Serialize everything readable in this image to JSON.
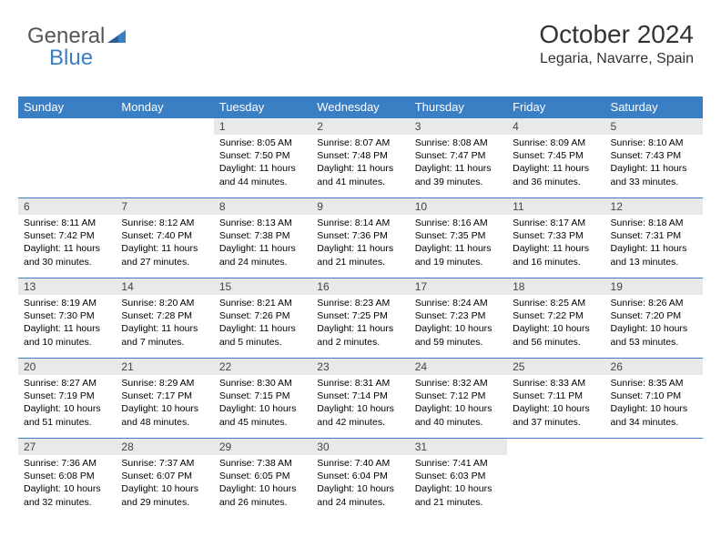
{
  "brand": {
    "part1": "General",
    "part2": "Blue"
  },
  "title": "October 2024",
  "location": "Legaria, Navarre, Spain",
  "colors": {
    "header_bg": "#3a7fc4",
    "header_text": "#ffffff",
    "daynum_bg": "#e8e9ea",
    "border": "#3a7fc4",
    "logo_gray": "#555555",
    "logo_blue": "#3a7fc4"
  },
  "weekdays": [
    "Sunday",
    "Monday",
    "Tuesday",
    "Wednesday",
    "Thursday",
    "Friday",
    "Saturday"
  ],
  "weeks": [
    [
      {
        "num": "",
        "sunrise": "",
        "sunset": "",
        "daylight": ""
      },
      {
        "num": "",
        "sunrise": "",
        "sunset": "",
        "daylight": ""
      },
      {
        "num": "1",
        "sunrise": "Sunrise: 8:05 AM",
        "sunset": "Sunset: 7:50 PM",
        "daylight": "Daylight: 11 hours and 44 minutes."
      },
      {
        "num": "2",
        "sunrise": "Sunrise: 8:07 AM",
        "sunset": "Sunset: 7:48 PM",
        "daylight": "Daylight: 11 hours and 41 minutes."
      },
      {
        "num": "3",
        "sunrise": "Sunrise: 8:08 AM",
        "sunset": "Sunset: 7:47 PM",
        "daylight": "Daylight: 11 hours and 39 minutes."
      },
      {
        "num": "4",
        "sunrise": "Sunrise: 8:09 AM",
        "sunset": "Sunset: 7:45 PM",
        "daylight": "Daylight: 11 hours and 36 minutes."
      },
      {
        "num": "5",
        "sunrise": "Sunrise: 8:10 AM",
        "sunset": "Sunset: 7:43 PM",
        "daylight": "Daylight: 11 hours and 33 minutes."
      }
    ],
    [
      {
        "num": "6",
        "sunrise": "Sunrise: 8:11 AM",
        "sunset": "Sunset: 7:42 PM",
        "daylight": "Daylight: 11 hours and 30 minutes."
      },
      {
        "num": "7",
        "sunrise": "Sunrise: 8:12 AM",
        "sunset": "Sunset: 7:40 PM",
        "daylight": "Daylight: 11 hours and 27 minutes."
      },
      {
        "num": "8",
        "sunrise": "Sunrise: 8:13 AM",
        "sunset": "Sunset: 7:38 PM",
        "daylight": "Daylight: 11 hours and 24 minutes."
      },
      {
        "num": "9",
        "sunrise": "Sunrise: 8:14 AM",
        "sunset": "Sunset: 7:36 PM",
        "daylight": "Daylight: 11 hours and 21 minutes."
      },
      {
        "num": "10",
        "sunrise": "Sunrise: 8:16 AM",
        "sunset": "Sunset: 7:35 PM",
        "daylight": "Daylight: 11 hours and 19 minutes."
      },
      {
        "num": "11",
        "sunrise": "Sunrise: 8:17 AM",
        "sunset": "Sunset: 7:33 PM",
        "daylight": "Daylight: 11 hours and 16 minutes."
      },
      {
        "num": "12",
        "sunrise": "Sunrise: 8:18 AM",
        "sunset": "Sunset: 7:31 PM",
        "daylight": "Daylight: 11 hours and 13 minutes."
      }
    ],
    [
      {
        "num": "13",
        "sunrise": "Sunrise: 8:19 AM",
        "sunset": "Sunset: 7:30 PM",
        "daylight": "Daylight: 11 hours and 10 minutes."
      },
      {
        "num": "14",
        "sunrise": "Sunrise: 8:20 AM",
        "sunset": "Sunset: 7:28 PM",
        "daylight": "Daylight: 11 hours and 7 minutes."
      },
      {
        "num": "15",
        "sunrise": "Sunrise: 8:21 AM",
        "sunset": "Sunset: 7:26 PM",
        "daylight": "Daylight: 11 hours and 5 minutes."
      },
      {
        "num": "16",
        "sunrise": "Sunrise: 8:23 AM",
        "sunset": "Sunset: 7:25 PM",
        "daylight": "Daylight: 11 hours and 2 minutes."
      },
      {
        "num": "17",
        "sunrise": "Sunrise: 8:24 AM",
        "sunset": "Sunset: 7:23 PM",
        "daylight": "Daylight: 10 hours and 59 minutes."
      },
      {
        "num": "18",
        "sunrise": "Sunrise: 8:25 AM",
        "sunset": "Sunset: 7:22 PM",
        "daylight": "Daylight: 10 hours and 56 minutes."
      },
      {
        "num": "19",
        "sunrise": "Sunrise: 8:26 AM",
        "sunset": "Sunset: 7:20 PM",
        "daylight": "Daylight: 10 hours and 53 minutes."
      }
    ],
    [
      {
        "num": "20",
        "sunrise": "Sunrise: 8:27 AM",
        "sunset": "Sunset: 7:19 PM",
        "daylight": "Daylight: 10 hours and 51 minutes."
      },
      {
        "num": "21",
        "sunrise": "Sunrise: 8:29 AM",
        "sunset": "Sunset: 7:17 PM",
        "daylight": "Daylight: 10 hours and 48 minutes."
      },
      {
        "num": "22",
        "sunrise": "Sunrise: 8:30 AM",
        "sunset": "Sunset: 7:15 PM",
        "daylight": "Daylight: 10 hours and 45 minutes."
      },
      {
        "num": "23",
        "sunrise": "Sunrise: 8:31 AM",
        "sunset": "Sunset: 7:14 PM",
        "daylight": "Daylight: 10 hours and 42 minutes."
      },
      {
        "num": "24",
        "sunrise": "Sunrise: 8:32 AM",
        "sunset": "Sunset: 7:12 PM",
        "daylight": "Daylight: 10 hours and 40 minutes."
      },
      {
        "num": "25",
        "sunrise": "Sunrise: 8:33 AM",
        "sunset": "Sunset: 7:11 PM",
        "daylight": "Daylight: 10 hours and 37 minutes."
      },
      {
        "num": "26",
        "sunrise": "Sunrise: 8:35 AM",
        "sunset": "Sunset: 7:10 PM",
        "daylight": "Daylight: 10 hours and 34 minutes."
      }
    ],
    [
      {
        "num": "27",
        "sunrise": "Sunrise: 7:36 AM",
        "sunset": "Sunset: 6:08 PM",
        "daylight": "Daylight: 10 hours and 32 minutes."
      },
      {
        "num": "28",
        "sunrise": "Sunrise: 7:37 AM",
        "sunset": "Sunset: 6:07 PM",
        "daylight": "Daylight: 10 hours and 29 minutes."
      },
      {
        "num": "29",
        "sunrise": "Sunrise: 7:38 AM",
        "sunset": "Sunset: 6:05 PM",
        "daylight": "Daylight: 10 hours and 26 minutes."
      },
      {
        "num": "30",
        "sunrise": "Sunrise: 7:40 AM",
        "sunset": "Sunset: 6:04 PM",
        "daylight": "Daylight: 10 hours and 24 minutes."
      },
      {
        "num": "31",
        "sunrise": "Sunrise: 7:41 AM",
        "sunset": "Sunset: 6:03 PM",
        "daylight": "Daylight: 10 hours and 21 minutes."
      },
      {
        "num": "",
        "sunrise": "",
        "sunset": "",
        "daylight": ""
      },
      {
        "num": "",
        "sunrise": "",
        "sunset": "",
        "daylight": ""
      }
    ]
  ]
}
